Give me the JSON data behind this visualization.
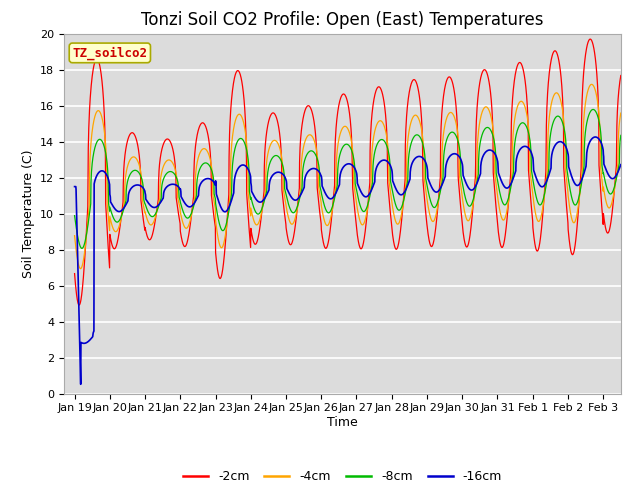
{
  "title": "Tonzi Soil CO2 Profile: Open (East) Temperatures",
  "xlabel": "Time",
  "ylabel": "Soil Temperature (C)",
  "ylim": [
    0,
    20
  ],
  "yticks": [
    0,
    2,
    4,
    6,
    8,
    10,
    12,
    14,
    16,
    18,
    20
  ],
  "legend_label": "TZ_soilco2",
  "series_labels": [
    "-2cm",
    "-4cm",
    "-8cm",
    "-16cm"
  ],
  "series_colors": [
    "#ff0000",
    "#ffa500",
    "#00bb00",
    "#0000cc"
  ],
  "bg_color": "#dcdcdc",
  "xtick_labels": [
    "Jan 19",
    "Jan 20",
    "Jan 21",
    "Jan 22",
    "Jan 23",
    "Jan 24",
    "Jan 25",
    "Jan 26",
    "Jan 27",
    "Jan 28",
    "Jan 29",
    "Jan 30",
    "Jan 31",
    "Feb 1",
    "Feb 2",
    "Feb 3"
  ],
  "title_fontsize": 12,
  "axis_label_fontsize": 9,
  "tick_fontsize": 8,
  "legend_fontsize": 9,
  "n_days": 15.5,
  "pts_per_day": 144,
  "base_temp": 10.5,
  "base_trend": 0.15,
  "amp_2cm": 5.0,
  "amp_4cm": 3.2,
  "amp_8cm": 2.2,
  "amp_16cm": 1.1,
  "phase_4cm": 0.04,
  "phase_8cm": 0.08,
  "phase_16cm": 0.14,
  "day_amps": [
    1.6,
    0.75,
    0.65,
    0.8,
    1.35,
    0.85,
    0.9,
    1.0,
    1.05,
    1.1,
    1.1,
    1.15,
    1.2,
    1.3,
    1.4,
    1.1
  ],
  "peak_sharpness": 3.0
}
